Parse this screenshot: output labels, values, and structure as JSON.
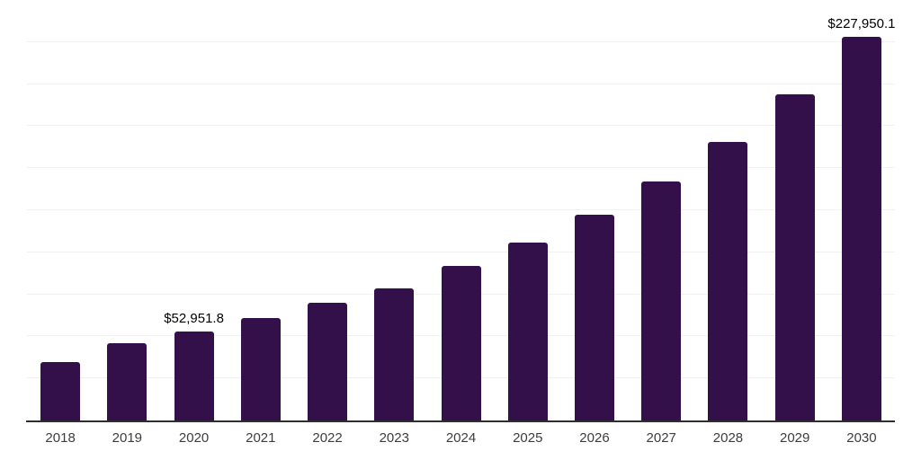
{
  "chart_data": {
    "type": "bar",
    "title": "",
    "xlabel": "",
    "ylabel": "",
    "legend": "none",
    "y_axis_tick_labels_visible": false,
    "grid": "horizontal",
    "ylim": [
      0,
      250000
    ],
    "gridline_step": 25000,
    "bar_color": "#33104a",
    "axis_line_color": "#2e2e2e",
    "gridline_color": "#f1f1f1",
    "tick_label_color": "#3d3d3d",
    "value_label_color": "#000000",
    "categories": [
      "2018",
      "2019",
      "2020",
      "2021",
      "2022",
      "2023",
      "2024",
      "2025",
      "2026",
      "2027",
      "2028",
      "2029",
      "2030"
    ],
    "values": [
      34600,
      45800,
      52951.8,
      61000,
      70100,
      78800,
      91800,
      105600,
      122500,
      142200,
      165700,
      194100,
      227950.1
    ],
    "points": [
      {
        "category": "2018",
        "value": 34600,
        "label": ""
      },
      {
        "category": "2019",
        "value": 45800,
        "label": ""
      },
      {
        "category": "2020",
        "value": 52951.8,
        "label": "$52,951.8"
      },
      {
        "category": "2021",
        "value": 61000,
        "label": ""
      },
      {
        "category": "2022",
        "value": 70100,
        "label": ""
      },
      {
        "category": "2023",
        "value": 78800,
        "label": ""
      },
      {
        "category": "2024",
        "value": 91800,
        "label": ""
      },
      {
        "category": "2025",
        "value": 105600,
        "label": ""
      },
      {
        "category": "2026",
        "value": 122500,
        "label": ""
      },
      {
        "category": "2027",
        "value": 142200,
        "label": ""
      },
      {
        "category": "2028",
        "value": 165700,
        "label": ""
      },
      {
        "category": "2029",
        "value": 194100,
        "label": ""
      },
      {
        "category": "2030",
        "value": 227950.1,
        "label": "$227,950.1"
      }
    ]
  }
}
